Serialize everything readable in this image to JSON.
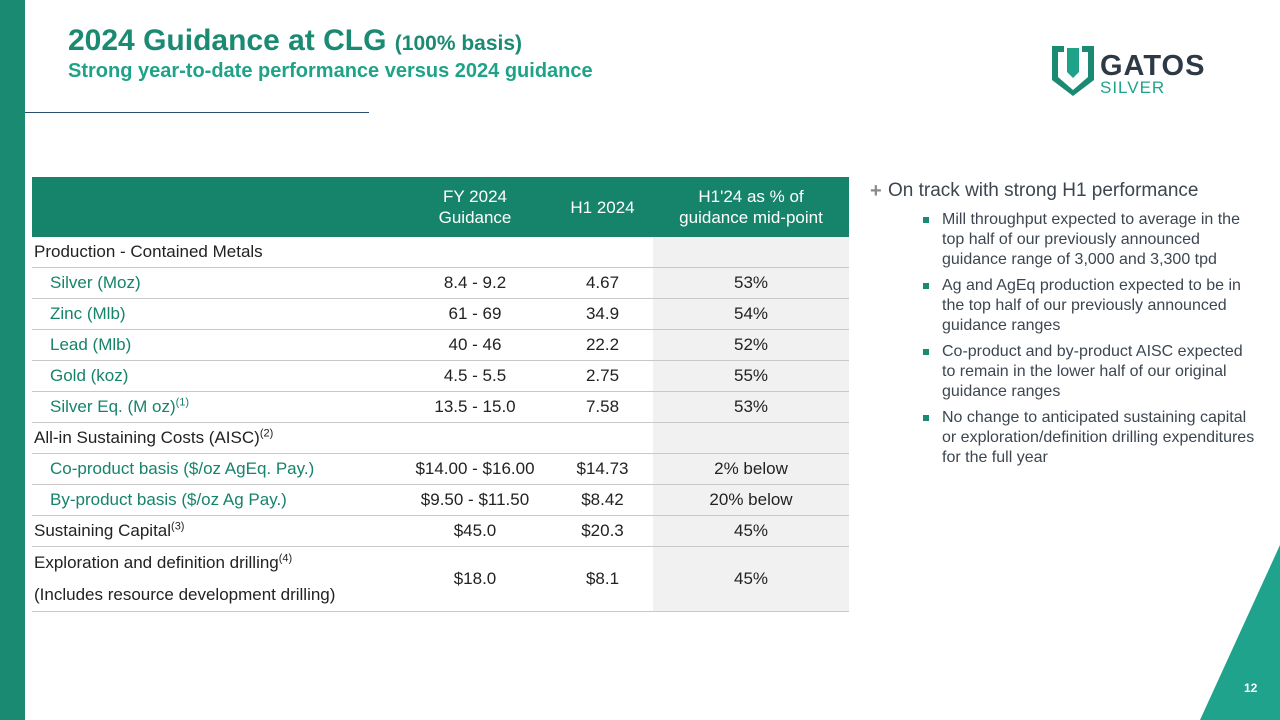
{
  "header": {
    "title": "2024 Guidance at CLG",
    "title_suffix": "(100% basis)",
    "subtitle": "Strong year-to-date performance versus 2024 guidance"
  },
  "logo": {
    "word1": "GATOS",
    "word2": "SILVER"
  },
  "table": {
    "headers": {
      "fy_line1": "FY 2024",
      "fy_line2": "Guidance",
      "h1": "H1 2024",
      "pct_line1": "H1'24 as % of",
      "pct_line2": "guidance mid-point"
    },
    "section_production": "Production - Contained Metals",
    "rows_production": [
      {
        "label": "Silver (Moz)",
        "fy": "8.4 - 9.2",
        "h1": "4.67",
        "pct": "53%"
      },
      {
        "label": "Zinc (Mlb)",
        "fy": "61 - 69",
        "h1": "34.9",
        "pct": "54%"
      },
      {
        "label": "Lead (Mlb)",
        "fy": "40 - 46",
        "h1": "22.2",
        "pct": "52%"
      },
      {
        "label": "Gold (koz)",
        "fy": "4.5 - 5.5",
        "h1": "2.75",
        "pct": "55%"
      },
      {
        "label": "Silver Eq. (M oz)",
        "sup": "(1)",
        "fy": "13.5 - 15.0",
        "h1": "7.58",
        "pct": "53%"
      }
    ],
    "section_aisc": "All-in Sustaining Costs (AISC)",
    "section_aisc_sup": "(2)",
    "rows_aisc": [
      {
        "label": "Co-product basis ($/oz AgEq. Pay.)",
        "fy": "$14.00 - $16.00",
        "h1": "$14.73",
        "pct": "2% below"
      },
      {
        "label": "By-product basis ($/oz Ag Pay.)",
        "fy": "$9.50 - $11.50",
        "h1": "$8.42",
        "pct": "20% below"
      }
    ],
    "sustaining": {
      "label": "Sustaining Capital",
      "sup": "(3)",
      "fy": "$45.0",
      "h1": "$20.3",
      "pct": "45%"
    },
    "exploration": {
      "label_line1": "Exploration and definition drilling",
      "sup": "(4)",
      "label_line2": "(Includes resource development drilling)",
      "fy": "$18.0",
      "h1": "$8.1",
      "pct": "45%"
    }
  },
  "bullets": {
    "main": "On track with strong H1 performance",
    "subs": [
      "Mill throughput expected to average in the top half of our previously announced guidance range of 3,000 and 3,300 tpd",
      "Ag and AgEq production expected to be in the top half of our previously announced guidance ranges",
      "Co-product and by-product AISC expected to remain in the lower half of our original guidance ranges",
      "No change to anticipated sustaining capital or exploration/definition drilling expenditures for the full year"
    ]
  },
  "page_number": "12",
  "colors": {
    "primary_green": "#1b8a72",
    "accent_teal": "#1fa388",
    "dark_slate": "#2d3a46"
  }
}
